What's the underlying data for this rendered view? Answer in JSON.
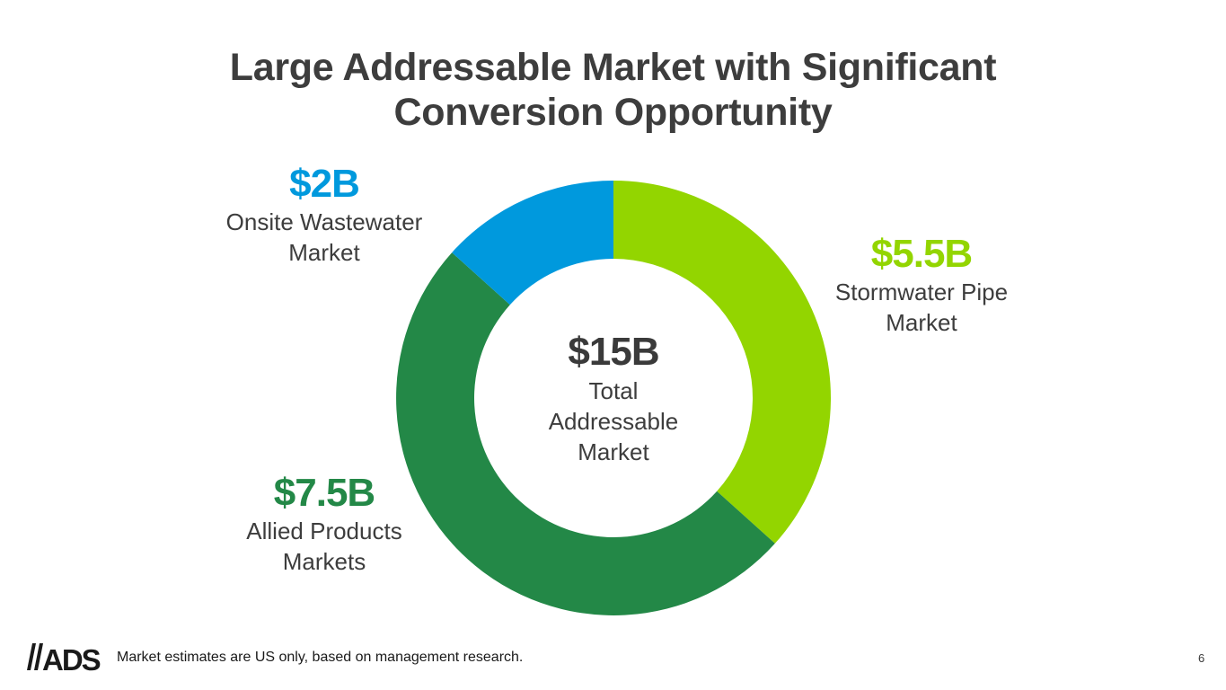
{
  "title": {
    "line1": "Large Addressable Market with Significant",
    "line2": "Conversion Opportunity"
  },
  "chart_data": {
    "type": "pie",
    "donut": true,
    "center": {
      "value": "$15B",
      "label": "Total\nAddressable\nMarket"
    },
    "slices": [
      {
        "value": 5.5,
        "display": "$5.5B",
        "label": "Stormwater Pipe\nMarket",
        "color": "#93D500"
      },
      {
        "value": 7.5,
        "display": "$7.5B",
        "label": "Allied Products\nMarkets",
        "color": "#238847"
      },
      {
        "value": 2,
        "display": "$2B",
        "label": "Onsite Wastewater\nMarket",
        "color": "#0099DD"
      }
    ]
  },
  "footer": {
    "logo_text": "ADS",
    "note": "Market estimates are US only, based on management research.",
    "page_number": "6"
  }
}
